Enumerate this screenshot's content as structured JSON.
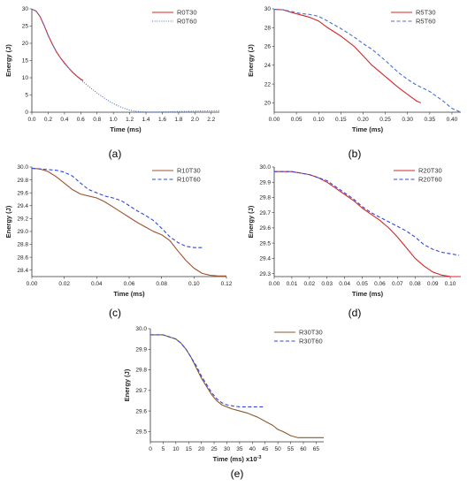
{
  "chart_data": [
    {
      "id": "a",
      "type": "line",
      "caption": "(a)",
      "xlabel": "Time (ms)",
      "ylabel": "Energy (J)",
      "xlim": [
        0,
        2.3
      ],
      "ylim": [
        0,
        30
      ],
      "xticks": [
        0.0,
        0.2,
        0.4,
        0.6,
        0.8,
        1.0,
        1.2,
        1.4,
        1.6,
        1.8,
        2.0,
        2.2
      ],
      "yticks": [
        0,
        5,
        10,
        15,
        20,
        25,
        30
      ],
      "xtick_decimals": 1,
      "ytick_decimals": 0,
      "legend_position": "top-right",
      "series": [
        {
          "name": "R0T30",
          "color": "#d62728",
          "dash": "solid",
          "x": [
            0,
            0.05,
            0.1,
            0.15,
            0.2,
            0.25,
            0.3,
            0.35,
            0.4,
            0.45,
            0.5,
            0.55,
            0.6,
            0.63
          ],
          "y": [
            29.9,
            29.4,
            27.8,
            25.2,
            22.3,
            19.8,
            17.6,
            15.8,
            14.3,
            12.9,
            11.6,
            10.5,
            9.6,
            9.2
          ]
        },
        {
          "name": "R0T60",
          "color": "#4a6fd1",
          "dash": "dotted",
          "x": [
            0,
            0.05,
            0.1,
            0.15,
            0.2,
            0.3,
            0.4,
            0.5,
            0.6,
            0.7,
            0.8,
            0.9,
            1.0,
            1.1,
            1.2,
            1.3,
            1.4,
            1.5,
            1.6,
            1.8,
            2.0,
            2.2,
            2.3
          ],
          "y": [
            29.9,
            29.4,
            27.8,
            25.2,
            22.3,
            17.5,
            14.1,
            11.5,
            9.4,
            7.4,
            5.6,
            3.9,
            2.5,
            1.4,
            0.6,
            0.2,
            0.05,
            0.05,
            0.1,
            0.2,
            0.3,
            0.4,
            0.45
          ]
        }
      ]
    },
    {
      "id": "b",
      "type": "line",
      "caption": "(b)",
      "xlabel": "Time (ms)",
      "ylabel": "Energy (J)",
      "xlim": [
        0,
        0.42
      ],
      "ylim": [
        19,
        30
      ],
      "xticks": [
        0.0,
        0.05,
        0.1,
        0.15,
        0.2,
        0.25,
        0.3,
        0.35,
        0.4
      ],
      "yticks": [
        20,
        22,
        24,
        26,
        28,
        30
      ],
      "xtick_decimals": 2,
      "ytick_decimals": 0,
      "legend_position": "top-right",
      "series": [
        {
          "name": "R5T30",
          "color": "#d62728",
          "dash": "solid",
          "x": [
            0,
            0.02,
            0.04,
            0.06,
            0.08,
            0.1,
            0.12,
            0.15,
            0.18,
            0.2,
            0.22,
            0.25,
            0.28,
            0.3,
            0.32,
            0.33
          ],
          "y": [
            29.95,
            29.9,
            29.6,
            29.35,
            29.1,
            28.7,
            28.0,
            27.1,
            26.0,
            25.0,
            24.0,
            22.8,
            21.6,
            20.9,
            20.2,
            20.0
          ]
        },
        {
          "name": "R5T60",
          "color": "#4a6fd1",
          "dash": "dashed",
          "x": [
            0,
            0.02,
            0.04,
            0.06,
            0.08,
            0.1,
            0.12,
            0.15,
            0.18,
            0.2,
            0.22,
            0.25,
            0.28,
            0.3,
            0.32,
            0.35,
            0.38,
            0.4,
            0.42
          ],
          "y": [
            29.95,
            29.9,
            29.7,
            29.5,
            29.4,
            29.2,
            28.7,
            27.9,
            27.0,
            26.3,
            25.7,
            24.5,
            23.2,
            22.5,
            21.9,
            21.2,
            20.2,
            19.4,
            19.0
          ]
        }
      ]
    },
    {
      "id": "c",
      "type": "line",
      "caption": "(c)",
      "xlabel": "Time (ms)",
      "ylabel": "Energy (J)",
      "xlim": [
        0,
        0.12
      ],
      "ylim": [
        28.3,
        30.0
      ],
      "xticks": [
        0.0,
        0.02,
        0.04,
        0.06,
        0.08,
        0.1,
        0.12
      ],
      "yticks": [
        28.4,
        28.6,
        28.8,
        29.0,
        29.2,
        29.4,
        29.6,
        29.8,
        30.0
      ],
      "xtick_decimals": 2,
      "ytick_decimals": 1,
      "legend_position": "top-right",
      "series": [
        {
          "name": "R10T30",
          "color": "#a0522d",
          "dash": "solid",
          "x": [
            0,
            0.005,
            0.01,
            0.015,
            0.02,
            0.025,
            0.03,
            0.035,
            0.04,
            0.045,
            0.05,
            0.055,
            0.06,
            0.065,
            0.07,
            0.075,
            0.08,
            0.085,
            0.09,
            0.095,
            0.1,
            0.105,
            0.11,
            0.115,
            0.12
          ],
          "y": [
            29.98,
            29.97,
            29.93,
            29.85,
            29.75,
            29.65,
            29.58,
            29.55,
            29.52,
            29.46,
            29.38,
            29.3,
            29.22,
            29.14,
            29.07,
            29.0,
            28.95,
            28.86,
            28.7,
            28.55,
            28.43,
            28.35,
            28.32,
            28.31,
            28.31
          ]
        },
        {
          "name": "R10T60",
          "color": "#3344dd",
          "dash": "dashed",
          "x": [
            0,
            0.005,
            0.01,
            0.015,
            0.02,
            0.025,
            0.03,
            0.035,
            0.04,
            0.045,
            0.05,
            0.055,
            0.06,
            0.065,
            0.07,
            0.075,
            0.08,
            0.085,
            0.09,
            0.095,
            0.1,
            0.105
          ],
          "y": [
            29.98,
            29.97,
            29.96,
            29.95,
            29.92,
            29.86,
            29.75,
            29.65,
            29.6,
            29.55,
            29.52,
            29.48,
            29.4,
            29.32,
            29.25,
            29.17,
            29.05,
            28.92,
            28.83,
            28.77,
            28.75,
            28.75
          ]
        }
      ]
    },
    {
      "id": "d",
      "type": "line",
      "caption": "(d)",
      "xlabel": "Time (ms)",
      "ylabel": "Energy (J)",
      "xlim": [
        0,
        0.106
      ],
      "ylim": [
        29.28,
        30.0
      ],
      "xticks": [
        0.0,
        0.01,
        0.02,
        0.03,
        0.04,
        0.05,
        0.06,
        0.07,
        0.08,
        0.09,
        0.1
      ],
      "yticks": [
        29.3,
        29.4,
        29.5,
        29.6,
        29.7,
        29.8,
        29.9,
        30.0
      ],
      "xtick_decimals": 2,
      "ytick_decimals": 1,
      "legend_position": "top-right",
      "series": [
        {
          "name": "R20T30",
          "color": "#d62728",
          "dash": "solid",
          "x": [
            0,
            0.01,
            0.015,
            0.02,
            0.025,
            0.03,
            0.035,
            0.04,
            0.045,
            0.05,
            0.055,
            0.06,
            0.065,
            0.07,
            0.075,
            0.08,
            0.085,
            0.09,
            0.095,
            0.1,
            0.105
          ],
          "y": [
            29.97,
            29.97,
            29.96,
            29.95,
            29.93,
            29.9,
            29.86,
            29.82,
            29.78,
            29.73,
            29.69,
            29.65,
            29.6,
            29.54,
            29.47,
            29.4,
            29.35,
            29.31,
            29.29,
            29.28,
            29.28
          ]
        },
        {
          "name": "R20T60",
          "color": "#3344dd",
          "dash": "dashed",
          "x": [
            0,
            0.01,
            0.015,
            0.02,
            0.025,
            0.03,
            0.035,
            0.04,
            0.045,
            0.05,
            0.055,
            0.06,
            0.065,
            0.07,
            0.075,
            0.08,
            0.085,
            0.09,
            0.095,
            0.1,
            0.105
          ],
          "y": [
            29.97,
            29.97,
            29.96,
            29.95,
            29.93,
            29.91,
            29.87,
            29.83,
            29.79,
            29.74,
            29.7,
            29.67,
            29.64,
            29.61,
            29.58,
            29.54,
            29.49,
            29.46,
            29.44,
            29.43,
            29.42
          ]
        }
      ]
    },
    {
      "id": "e",
      "type": "line",
      "caption": "(e)",
      "xlabel": "Time (ms) x10",
      "xlabel_exponent": "-3",
      "ylabel": "Energy (J)",
      "xlim": [
        0,
        68
      ],
      "ylim": [
        29.45,
        30.0
      ],
      "xticks": [
        0,
        5,
        10,
        15,
        20,
        25,
        30,
        35,
        40,
        45,
        50,
        55,
        60,
        65
      ],
      "yticks": [
        29.5,
        29.6,
        29.7,
        29.8,
        29.9,
        30.0
      ],
      "xtick_decimals": 0,
      "ytick_decimals": 1,
      "legend_position": "top-right",
      "series": [
        {
          "name": "R30T30",
          "color": "#8b5a2b",
          "dash": "solid",
          "x": [
            0,
            5,
            10,
            12,
            14,
            16,
            18,
            20,
            22,
            24,
            26,
            28,
            30,
            32,
            35,
            38,
            40,
            42,
            45,
            48,
            50,
            52,
            55,
            58,
            60,
            63,
            65,
            68
          ],
          "y": [
            29.97,
            29.97,
            29.95,
            29.93,
            29.9,
            29.86,
            29.81,
            29.76,
            29.72,
            29.68,
            29.65,
            29.63,
            29.62,
            29.61,
            29.6,
            29.59,
            29.58,
            29.57,
            29.55,
            29.53,
            29.51,
            29.5,
            29.48,
            29.47,
            29.47,
            29.47,
            29.47,
            29.47
          ]
        },
        {
          "name": "R30T60",
          "color": "#3344dd",
          "dash": "dashed",
          "x": [
            0,
            5,
            10,
            12,
            14,
            16,
            18,
            20,
            22,
            24,
            26,
            28,
            30,
            32,
            35,
            38,
            40,
            42,
            45
          ],
          "y": [
            29.97,
            29.97,
            29.95,
            29.93,
            29.9,
            29.86,
            29.82,
            29.77,
            29.73,
            29.69,
            29.66,
            29.64,
            29.63,
            29.625,
            29.62,
            29.62,
            29.62,
            29.62,
            29.62
          ]
        }
      ]
    }
  ]
}
